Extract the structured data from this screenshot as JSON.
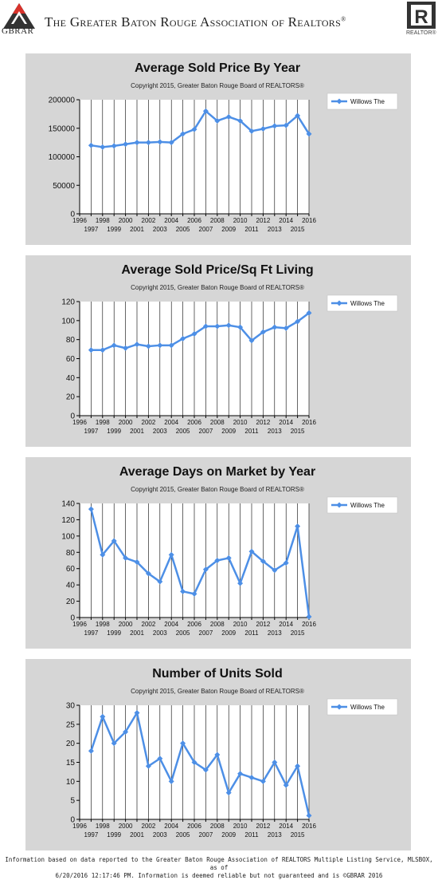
{
  "header": {
    "org_short": "GBRAR",
    "title": "The Greater Baton Rouge Association of Realtors",
    "registered_mark": "®",
    "realtor_label": "REALTOR®"
  },
  "colors": {
    "series": "#4d8fe6",
    "panel": "#d6d6d6",
    "plot": "#ffffff"
  },
  "chart_data": [
    {
      "type": "line",
      "title": "Average Sold Price By Year",
      "subtitle": "Copyright 2015, Greater Baton Rouge Board of REALTORS®",
      "ylim": [
        0,
        200000
      ],
      "yticks": [
        0,
        50000,
        100000,
        150000,
        200000
      ],
      "ytick_labels": [
        "0",
        "50000",
        "100000",
        "150000",
        "200000"
      ],
      "xlim": [
        1996,
        2016
      ],
      "legend_position": "right",
      "grid": "vertical",
      "series": [
        {
          "name": "Willows The",
          "x": [
            1997,
            1998,
            1999,
            2000,
            2001,
            2002,
            2003,
            2004,
            2005,
            2006,
            2007,
            2008,
            2009,
            2010,
            2011,
            2012,
            2013,
            2014,
            2015,
            2016
          ],
          "values": [
            120000,
            117000,
            119000,
            122000,
            125000,
            125000,
            126000,
            125000,
            140000,
            148000,
            180000,
            163000,
            170000,
            163000,
            145000,
            149000,
            154000,
            155000,
            172000,
            140000
          ]
        }
      ]
    },
    {
      "type": "line",
      "title": "Average Sold Price/Sq Ft Living",
      "subtitle": "Copyright 2015, Greater Baton Rouge Board of REALTORS®",
      "ylim": [
        0,
        120
      ],
      "yticks": [
        0,
        20,
        40,
        60,
        80,
        100,
        120
      ],
      "ytick_labels": [
        "0",
        "20",
        "40",
        "60",
        "80",
        "100",
        "120"
      ],
      "xlim": [
        1996,
        2016
      ],
      "legend_position": "right",
      "grid": "vertical",
      "series": [
        {
          "name": "Willows The",
          "x": [
            1997,
            1998,
            1999,
            2000,
            2001,
            2002,
            2003,
            2004,
            2005,
            2006,
            2007,
            2008,
            2009,
            2010,
            2011,
            2012,
            2013,
            2014,
            2015,
            2016
          ],
          "values": [
            69,
            69,
            74,
            71,
            75,
            73,
            74,
            74,
            81,
            86,
            94,
            94,
            95,
            93,
            79,
            88,
            93,
            92,
            99,
            108
          ]
        }
      ]
    },
    {
      "type": "line",
      "title": "Average Days on Market by Year",
      "subtitle": "Copyright 2015, Greater Baton Rouge Board of REALTORS®",
      "ylim": [
        0,
        140
      ],
      "yticks": [
        0,
        20,
        40,
        60,
        80,
        100,
        120,
        140
      ],
      "ytick_labels": [
        "0",
        "20",
        "40",
        "60",
        "80",
        "100",
        "120",
        "140"
      ],
      "xlim": [
        1996,
        2016
      ],
      "legend_position": "right",
      "grid": "vertical",
      "series": [
        {
          "name": "Willows The",
          "x": [
            1997,
            1998,
            1999,
            2000,
            2001,
            2002,
            2003,
            2004,
            2005,
            2006,
            2007,
            2008,
            2009,
            2010,
            2011,
            2012,
            2013,
            2014,
            2015,
            2016
          ],
          "values": [
            133,
            77,
            94,
            73,
            68,
            54,
            44,
            77,
            32,
            29,
            59,
            70,
            73,
            42,
            81,
            69,
            58,
            67,
            112,
            1
          ]
        }
      ]
    },
    {
      "type": "line",
      "title": "Number of Units Sold",
      "subtitle": "Copyright 2015, Greater Baton Rouge Board of REALTORS®",
      "ylim": [
        0,
        30
      ],
      "yticks": [
        0,
        5,
        10,
        15,
        20,
        25,
        30
      ],
      "ytick_labels": [
        "0",
        "5",
        "10",
        "15",
        "20",
        "25",
        "30"
      ],
      "xlim": [
        1996,
        2016
      ],
      "legend_position": "right",
      "grid": "vertical",
      "series": [
        {
          "name": "Willows The",
          "x": [
            1997,
            1998,
            1999,
            2000,
            2001,
            2002,
            2003,
            2004,
            2005,
            2006,
            2007,
            2008,
            2009,
            2010,
            2011,
            2012,
            2013,
            2014,
            2015,
            2016
          ],
          "values": [
            18,
            27,
            20,
            23,
            28,
            14,
            16,
            10,
            20,
            15,
            13,
            17,
            7,
            12,
            11,
            10,
            15,
            9,
            14,
            1
          ]
        }
      ]
    }
  ],
  "footer": {
    "line1": "Information based on data reported to the Greater Baton Rouge Association of REALTORS Multiple Listing Service, MLSBOX, as of",
    "line2": "6/20/2016 12:17:46 PM. Information is deemed reliable but not guaranteed and is ©GBRAR 2016"
  }
}
